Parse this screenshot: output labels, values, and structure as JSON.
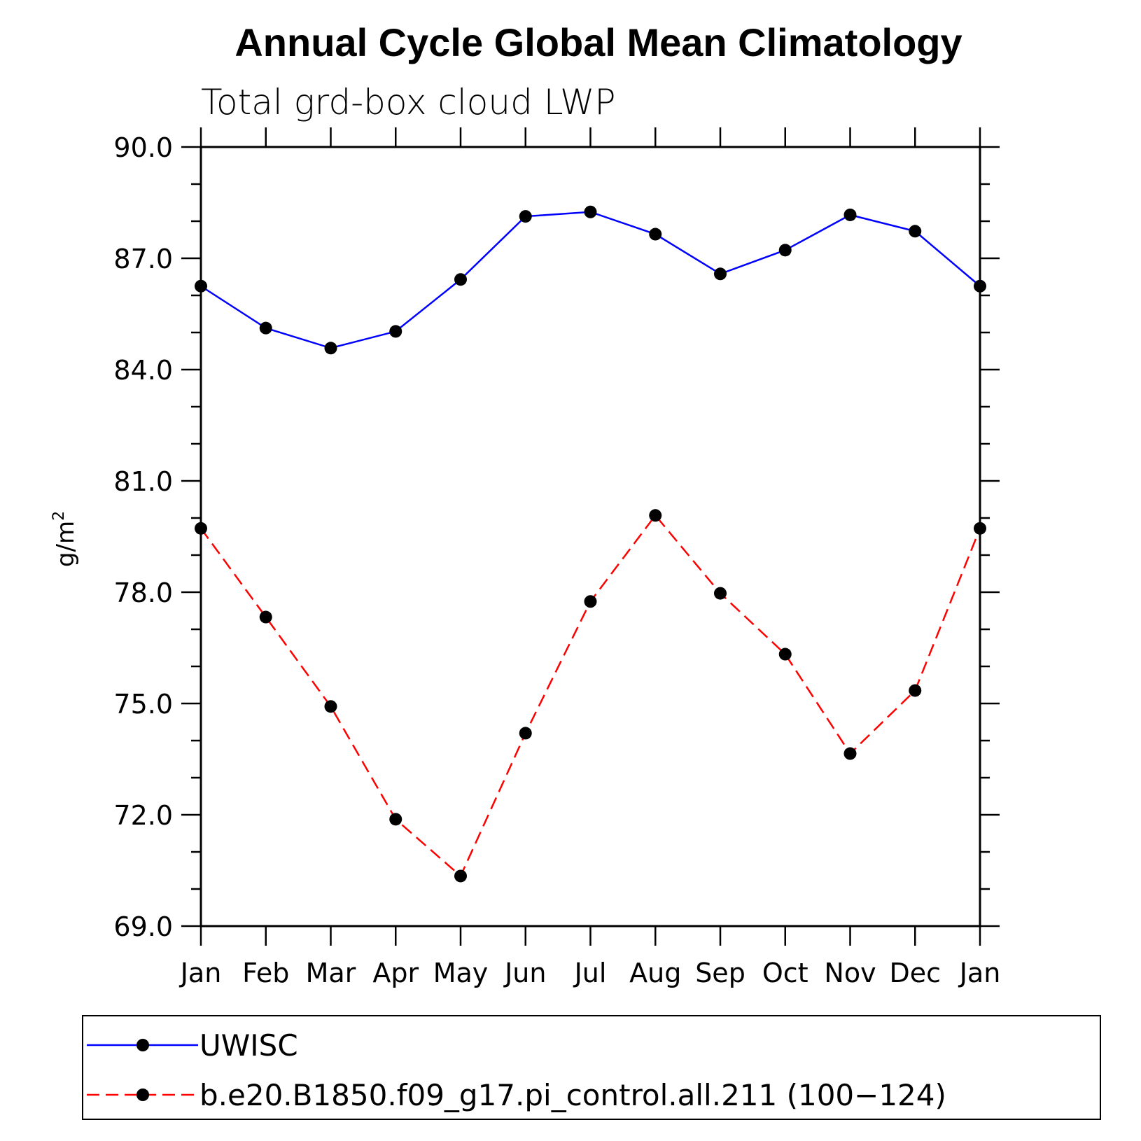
{
  "chart_data": {
    "type": "line",
    "title": "Annual Cycle Global Mean Climatology",
    "subtitle": "Total grd-box cloud LWP",
    "ylabel": "g/m²",
    "ylabel_base": "g/m",
    "ylabel_sup": "2",
    "xlabel": "",
    "categories": [
      "Jan",
      "Feb",
      "Mar",
      "Apr",
      "May",
      "Jun",
      "Jul",
      "Aug",
      "Sep",
      "Oct",
      "Nov",
      "Dec",
      "Jan"
    ],
    "ylim": [
      69.0,
      90.0
    ],
    "ytick_labels": [
      "69.0",
      "72.0",
      "75.0",
      "78.0",
      "81.0",
      "84.0",
      "87.0",
      "90.0"
    ],
    "yticks": [
      69,
      72,
      75,
      78,
      81,
      84,
      87,
      90
    ],
    "minor_step": 1,
    "grid": false,
    "legend_position": "bottom",
    "series": [
      {
        "name": "UWISC",
        "color": "#0000ff",
        "dash": "solid",
        "marker": "filled-circle",
        "values": [
          86.25,
          85.12,
          84.58,
          85.03,
          86.43,
          88.13,
          88.25,
          87.65,
          86.58,
          87.22,
          88.17,
          87.73,
          86.25
        ]
      },
      {
        "name": "b.e20.B1850.f09_g17.pi_control.all.211 (100−124)",
        "color": "#ff0000",
        "dash": "dashed",
        "marker": "filled-circle",
        "values": [
          79.72,
          77.33,
          74.92,
          71.88,
          70.35,
          74.2,
          77.75,
          80.07,
          77.97,
          76.33,
          73.65,
          75.35,
          79.72
        ]
      }
    ]
  }
}
